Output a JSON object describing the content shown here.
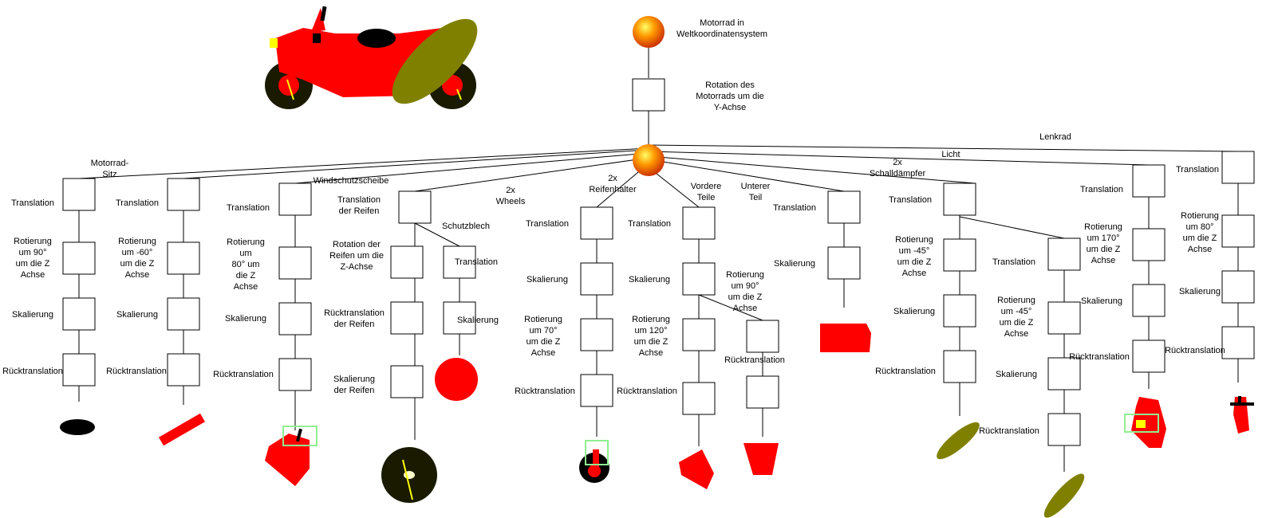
{
  "root": {
    "label": "Motorrad in\nWeltkoordinatensystem"
  },
  "rotation": {
    "label": "Rotation des\nMotorrads  um die\nY-Achse"
  },
  "branches": {
    "sitz": "Motorrad-\nSitz",
    "windschutz": "Windschutzscheibe",
    "wheels": "2x\nWheels",
    "schutzblech": "Schutzblech",
    "reifenhalter": "2x\nReifenhalter",
    "vordere": "Vordere\nTeile",
    "unterer": "Unterer\nTeil",
    "schalldaempfer": "2x\nSchalldämpfer",
    "licht": "Licht",
    "lenkrad": "Lenkrad"
  },
  "nodes": {
    "translation": "Translation",
    "skalierung": "Skalierung",
    "ruecktranslation": "Rücktranslation",
    "rot_90": "Rotierung\num 90°\num die Z\nAchse",
    "rot_m60": "Rotierung\num -60°\num die Z\nAchse",
    "rot_80": "Rotierung\num\n80° um\ndie Z\nAchse",
    "trans_reifen": "Translation\nder Reifen",
    "rot_reifen": "Rotation der\nReifen um die\nZ-Achse",
    "rueck_reifen": "Rücktranslation\nder Reifen",
    "skal_reifen": "Skalierung\nder Reifen",
    "rot_70": "Rotierung\num 70°\num die Z\nAchse",
    "rot_120": "Rotierung\num 120°\num die Z\nAchse",
    "rot_90b": "Rotierung\num 90°\num die Z\nAchse",
    "rot_m45a": "Rotierung\num -45°\num die Z\nAchse",
    "rot_m45b": "Rotierung\num -45°\num die Z\nAchse",
    "rot_170": "Rotierung\num 170°\num die Z\nAchse",
    "rot_80b": "Rotierung\num 80°\num die Z\nAchse"
  },
  "colors": {
    "red": "#ff0000",
    "olive": "#808000",
    "tire": "#1a1a00",
    "yellow": "#ffff00",
    "highlight": "#90ee90",
    "sphere": "#ff8c00"
  }
}
